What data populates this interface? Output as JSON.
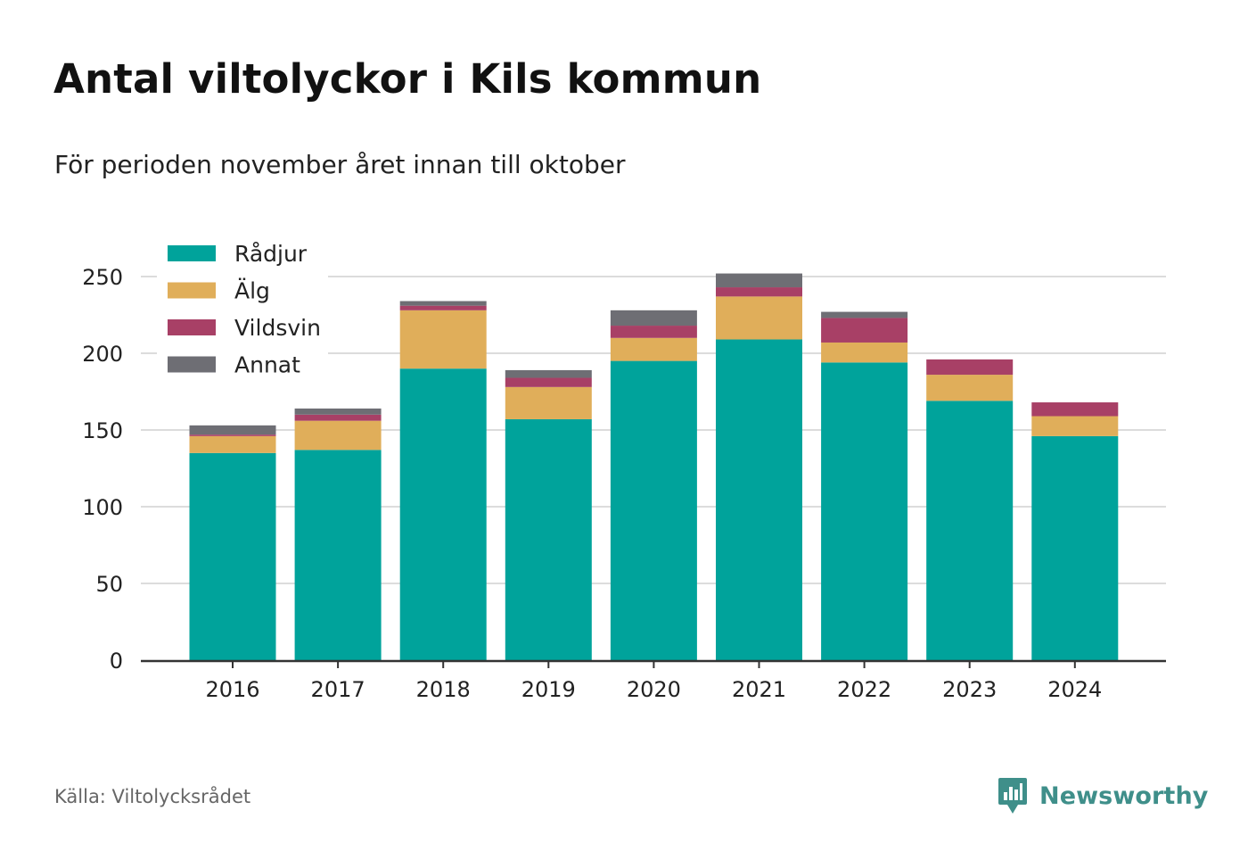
{
  "title": "Antal viltolyckor i Kils kommun",
  "subtitle": "För perioden november året innan till oktober",
  "source": "Källa: Viltolycksrådet",
  "brand": {
    "name": "Newsworthy",
    "icon": "newsworthy-logo-icon",
    "color": "#3f8f8a"
  },
  "chart_data": {
    "type": "bar",
    "stacked": true,
    "categories": [
      "2016",
      "2017",
      "2018",
      "2019",
      "2020",
      "2021",
      "2022",
      "2023",
      "2024"
    ],
    "series": [
      {
        "name": "Rådjur",
        "color": "#00a39b",
        "values": [
          135,
          137,
          190,
          157,
          195,
          209,
          194,
          169,
          146
        ]
      },
      {
        "name": "Älg",
        "color": "#e0ae5a",
        "values": [
          11,
          19,
          38,
          21,
          15,
          28,
          13,
          17,
          13
        ]
      },
      {
        "name": "Vildsvin",
        "color": "#a84066",
        "values": [
          1,
          4,
          3,
          6,
          8,
          6,
          16,
          10,
          9
        ]
      },
      {
        "name": "Annat",
        "color": "#6e6e74",
        "values": [
          6,
          4,
          3,
          5,
          10,
          9,
          4,
          0,
          0
        ]
      }
    ],
    "yticks": [
      0,
      50,
      100,
      150,
      200,
      250
    ],
    "ylim": [
      0,
      262
    ],
    "grid": true,
    "legend": "top-left",
    "xlabel": "",
    "ylabel": ""
  }
}
